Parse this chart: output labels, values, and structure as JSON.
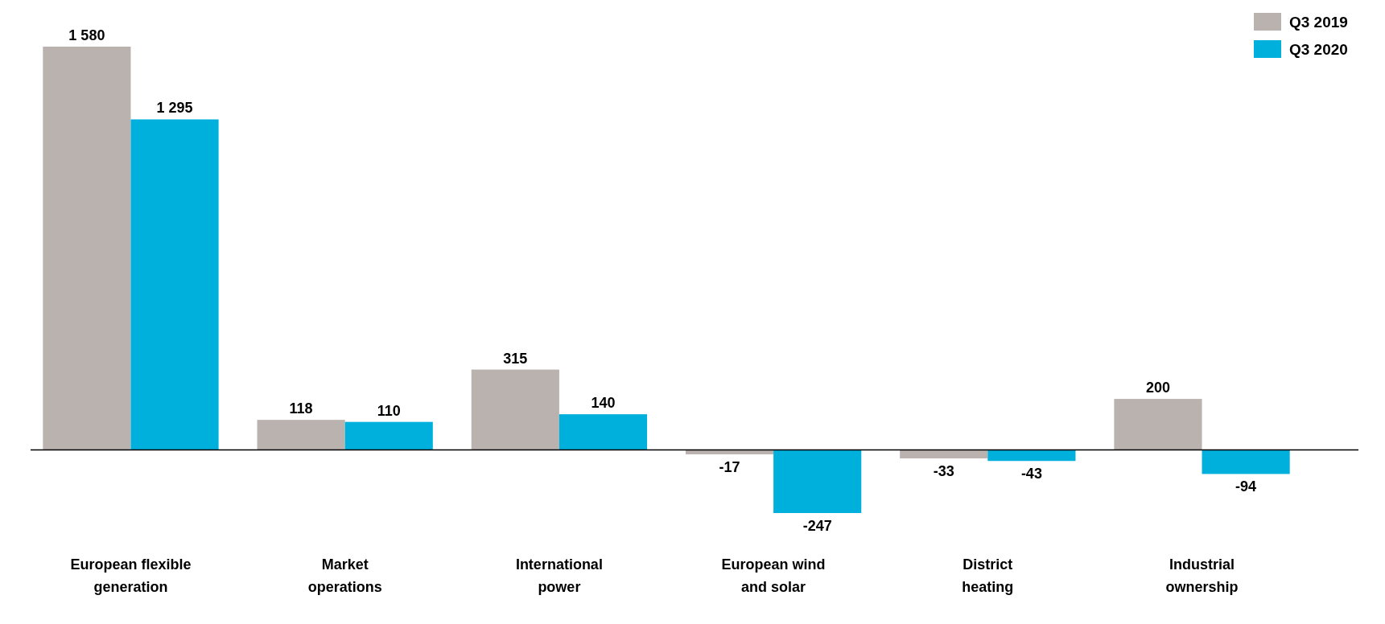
{
  "chart_data": {
    "type": "bar",
    "categories": [
      "European flexible generation",
      "Market operations",
      "International power",
      "European wind and solar",
      "District heating",
      "Industrial ownership"
    ],
    "series": [
      {
        "name": "Q3 2019",
        "color": "#b9b2af",
        "values": [
          1580,
          118,
          315,
          -17,
          -33,
          200
        ],
        "value_labels": [
          "1 580",
          "118",
          "315",
          "-17",
          "-33",
          "200"
        ]
      },
      {
        "name": "Q3 2020",
        "color": "#00b0dc",
        "values": [
          1295,
          110,
          140,
          -247,
          -43,
          -94
        ],
        "value_labels": [
          "1 295",
          "110",
          "140",
          "-247",
          "-43",
          "-94"
        ]
      }
    ],
    "legend": "top right"
  }
}
